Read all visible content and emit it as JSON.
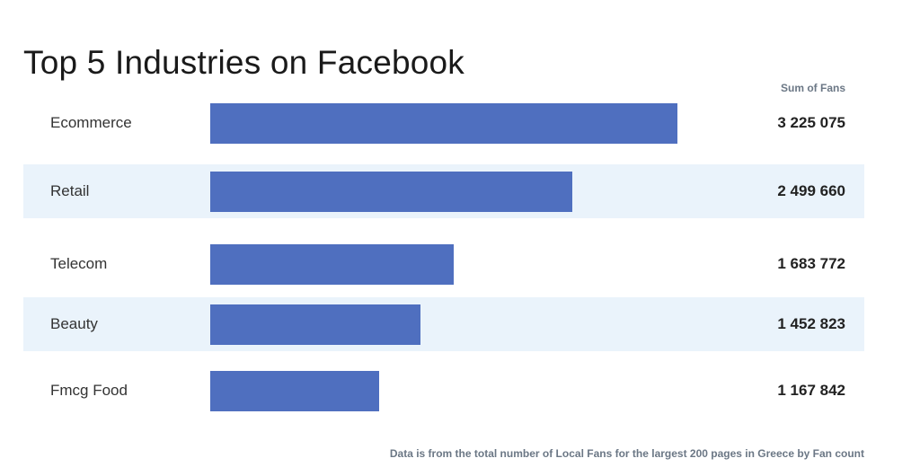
{
  "chart_data": {
    "type": "bar",
    "orientation": "horizontal",
    "title": "Top 5 Industries on Facebook",
    "value_header": "Sum of Fans",
    "categories": [
      "Ecommerce",
      "Retail",
      "Telecom",
      "Beauty",
      "Fmcg Food"
    ],
    "values": [
      3225075,
      2499660,
      1683772,
      1452823,
      1167842
    ],
    "value_labels": [
      "3 225 075",
      "2 499 660",
      "1 683 772",
      "1 452 823",
      "1 167 842"
    ],
    "footnote": "Data is from the total number of Local Fans for the largest 200 pages in Greece by Fan count",
    "colors": {
      "bar": "#4f6fbf",
      "alt_row": "#eaf3fb"
    },
    "grid": false,
    "legend": "none"
  }
}
